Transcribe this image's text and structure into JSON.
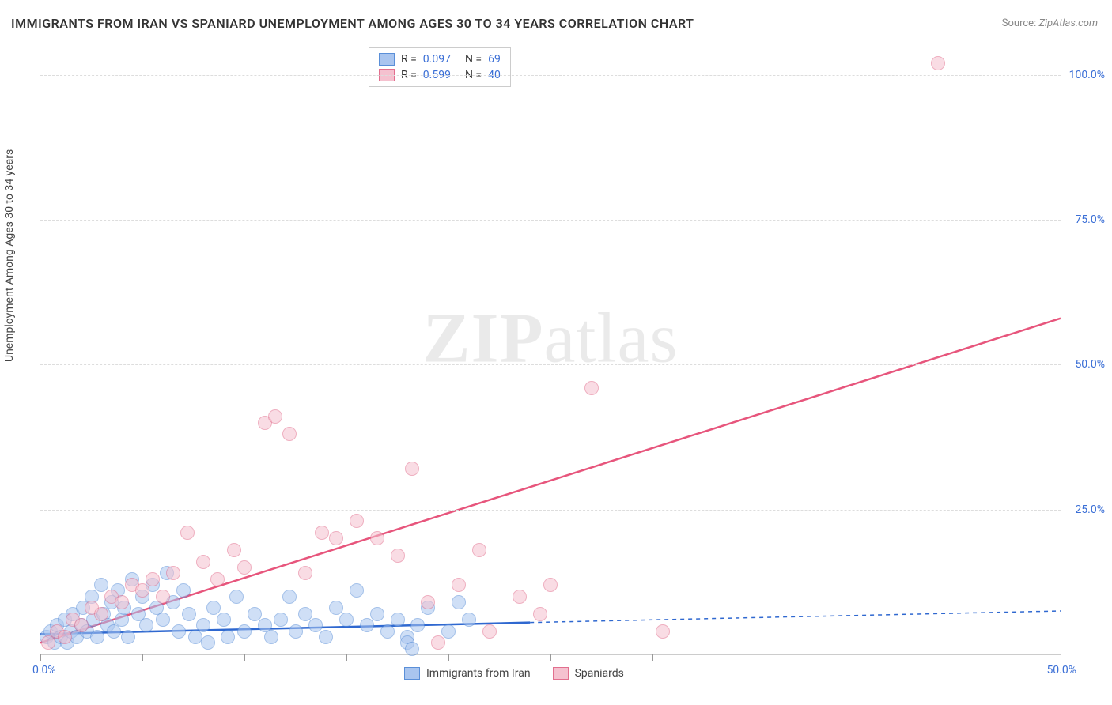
{
  "title": "IMMIGRANTS FROM IRAN VS SPANIARD UNEMPLOYMENT AMONG AGES 30 TO 34 YEARS CORRELATION CHART",
  "source_label": "Source:",
  "source_value": "ZipAtlas.com",
  "ylabel": "Unemployment Among Ages 30 to 34 years",
  "watermark_bold": "ZIP",
  "watermark_rest": "atlas",
  "chart": {
    "type": "scatter",
    "xlim": [
      0,
      50
    ],
    "ylim": [
      0,
      105
    ],
    "x_ticks": [
      0,
      5,
      10,
      15,
      20,
      25,
      30,
      35,
      40,
      45,
      50
    ],
    "x_tick_labels_shown": {
      "0": "0.0%",
      "50": "50.0%"
    },
    "y_gridlines": [
      25,
      50,
      75,
      100
    ],
    "y_tick_labels": {
      "25": "25.0%",
      "50": "50.0%",
      "75": "75.0%",
      "100": "100.0%"
    },
    "background_color": "#ffffff",
    "grid_color": "#dddddd",
    "axis_color": "#cccccc",
    "tick_label_color": "#3b6fd6",
    "point_radius": 8,
    "point_opacity": 0.55,
    "series": [
      {
        "name": "Immigrants from Iran",
        "color_fill": "#a9c5ef",
        "color_stroke": "#5a8fd8",
        "R": "0.097",
        "N": "69",
        "trend": {
          "x0": 0,
          "y0": 3.5,
          "x1": 24,
          "y1": 5.5,
          "solid_color": "#2f68d0",
          "dash_to_x": 50,
          "dash_to_y": 7.5
        },
        "points": [
          [
            0.3,
            3
          ],
          [
            0.5,
            4
          ],
          [
            0.7,
            2
          ],
          [
            0.8,
            5
          ],
          [
            1.0,
            3
          ],
          [
            1.2,
            6
          ],
          [
            1.3,
            2
          ],
          [
            1.5,
            4
          ],
          [
            1.6,
            7
          ],
          [
            1.8,
            3
          ],
          [
            2.0,
            5
          ],
          [
            2.1,
            8
          ],
          [
            2.3,
            4
          ],
          [
            2.5,
            10
          ],
          [
            2.6,
            6
          ],
          [
            2.8,
            3
          ],
          [
            3.0,
            12
          ],
          [
            3.1,
            7
          ],
          [
            3.3,
            5
          ],
          [
            3.5,
            9
          ],
          [
            3.6,
            4
          ],
          [
            3.8,
            11
          ],
          [
            4.0,
            6
          ],
          [
            4.1,
            8
          ],
          [
            4.3,
            3
          ],
          [
            4.5,
            13
          ],
          [
            4.8,
            7
          ],
          [
            5.0,
            10
          ],
          [
            5.2,
            5
          ],
          [
            5.5,
            12
          ],
          [
            5.7,
            8
          ],
          [
            6.0,
            6
          ],
          [
            6.2,
            14
          ],
          [
            6.5,
            9
          ],
          [
            6.8,
            4
          ],
          [
            7.0,
            11
          ],
          [
            7.3,
            7
          ],
          [
            7.6,
            3
          ],
          [
            8.0,
            5
          ],
          [
            8.2,
            2
          ],
          [
            8.5,
            8
          ],
          [
            9.0,
            6
          ],
          [
            9.2,
            3
          ],
          [
            9.6,
            10
          ],
          [
            10.0,
            4
          ],
          [
            10.5,
            7
          ],
          [
            11.0,
            5
          ],
          [
            11.3,
            3
          ],
          [
            11.8,
            6
          ],
          [
            12.2,
            10
          ],
          [
            12.5,
            4
          ],
          [
            13.0,
            7
          ],
          [
            13.5,
            5
          ],
          [
            14.0,
            3
          ],
          [
            14.5,
            8
          ],
          [
            15.0,
            6
          ],
          [
            15.5,
            11
          ],
          [
            16.0,
            5
          ],
          [
            16.5,
            7
          ],
          [
            17.0,
            4
          ],
          [
            17.5,
            6
          ],
          [
            18.0,
            3
          ],
          [
            18.0,
            2
          ],
          [
            18.5,
            5
          ],
          [
            19.0,
            8
          ],
          [
            20.0,
            4
          ],
          [
            20.5,
            9
          ],
          [
            21.0,
            6
          ],
          [
            18.2,
            1
          ]
        ]
      },
      {
        "name": "Spaniards",
        "color_fill": "#f5c1cf",
        "color_stroke": "#e26f8e",
        "R": "0.599",
        "N": "40",
        "trend": {
          "x0": 0,
          "y0": 2,
          "x1": 50,
          "y1": 58,
          "solid_color": "#e7557c"
        },
        "points": [
          [
            0.4,
            2
          ],
          [
            0.8,
            4
          ],
          [
            1.2,
            3
          ],
          [
            1.6,
            6
          ],
          [
            2.0,
            5
          ],
          [
            2.5,
            8
          ],
          [
            3.0,
            7
          ],
          [
            3.5,
            10
          ],
          [
            4.0,
            9
          ],
          [
            4.5,
            12
          ],
          [
            5.0,
            11
          ],
          [
            5.5,
            13
          ],
          [
            6.0,
            10
          ],
          [
            6.5,
            14
          ],
          [
            7.2,
            21
          ],
          [
            8.0,
            16
          ],
          [
            8.7,
            13
          ],
          [
            9.5,
            18
          ],
          [
            10.0,
            15
          ],
          [
            11.0,
            40
          ],
          [
            11.5,
            41
          ],
          [
            12.2,
            38
          ],
          [
            13.0,
            14
          ],
          [
            13.8,
            21
          ],
          [
            14.5,
            20
          ],
          [
            15.5,
            23
          ],
          [
            16.5,
            20
          ],
          [
            17.5,
            17
          ],
          [
            18.2,
            32
          ],
          [
            19.0,
            9
          ],
          [
            20.5,
            12
          ],
          [
            21.5,
            18
          ],
          [
            22.0,
            4
          ],
          [
            23.5,
            10
          ],
          [
            25.0,
            12
          ],
          [
            27.0,
            46
          ],
          [
            30.5,
            4
          ],
          [
            24.5,
            7
          ],
          [
            44.0,
            102
          ],
          [
            19.5,
            2
          ]
        ]
      }
    ],
    "legend_bottom": [
      {
        "label": "Immigrants from Iran",
        "fill": "#a9c5ef",
        "stroke": "#5a8fd8"
      },
      {
        "label": "Spaniards",
        "fill": "#f5c1cf",
        "stroke": "#e26f8e"
      }
    ]
  }
}
